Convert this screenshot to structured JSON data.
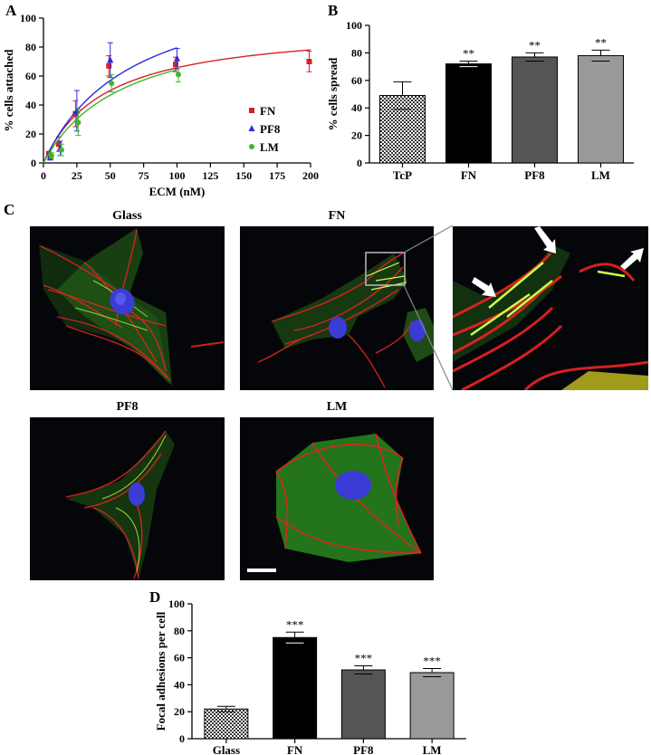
{
  "panels": {
    "A": "A",
    "B": "B",
    "C": "C",
    "D": "D"
  },
  "micrographs": {
    "glass": "Glass",
    "fn": "FN",
    "pf8": "PF8",
    "lm": "LM"
  },
  "colors": {
    "fn": "#d62028",
    "pf8": "#2a2ad8",
    "lm": "#3fb62a",
    "actin": "#e32222",
    "vinculin": "#3fd23a",
    "nucleus": "#3b3bd6"
  },
  "chart_data": [
    {
      "id": "A",
      "type": "scatter",
      "title": "",
      "xlabel": "ECM (nM)",
      "ylabel": "% cells attached",
      "xlim": [
        0,
        200
      ],
      "ylim": [
        0,
        100
      ],
      "xticks": [
        "0",
        "25",
        "50",
        "75",
        "100",
        "125",
        "150",
        "175",
        "200"
      ],
      "yticks": [
        "0",
        "20",
        "40",
        "60",
        "80",
        "100"
      ],
      "legend_position": "bottom-right",
      "series": [
        {
          "name": "FN",
          "color": "#d62028",
          "marker": "square",
          "x": [
            5,
            12.5,
            25,
            50,
            100,
            200
          ],
          "y": [
            6,
            13,
            34,
            67,
            68,
            70
          ],
          "err": [
            2,
            5,
            9,
            7,
            5,
            7
          ],
          "fit": {
            "bmax": 96,
            "kd": 46,
            "xmax": 200
          }
        },
        {
          "name": "PF8",
          "color": "#2a2ad8",
          "marker": "triangle",
          "x": [
            5,
            12.5,
            25,
            50,
            100
          ],
          "y": [
            4,
            10,
            36,
            71,
            72
          ],
          "err": [
            2,
            5,
            14,
            12,
            7
          ],
          "fit": {
            "bmax": 132,
            "kd": 66,
            "xmax": 100
          }
        },
        {
          "name": "LM",
          "color": "#3fb62a",
          "marker": "circle",
          "x": [
            5,
            12.5,
            25,
            50,
            100
          ],
          "y": [
            5,
            9,
            28,
            55,
            61
          ],
          "err": [
            2,
            4,
            9,
            6,
            5
          ],
          "fit": {
            "bmax": 103,
            "kd": 60,
            "xmax": 100
          }
        }
      ]
    },
    {
      "id": "B",
      "type": "bar",
      "title": "",
      "xlabel": "",
      "ylabel": "% cells spread",
      "ylim": [
        0,
        100
      ],
      "yticks": [
        "0",
        "20",
        "40",
        "60",
        "80",
        "100"
      ],
      "categories": [
        "TcP",
        "FN",
        "PF8",
        "LM"
      ],
      "values": [
        49,
        72,
        77,
        78
      ],
      "errors": [
        10,
        2,
        3,
        4
      ],
      "significance": [
        "",
        "**",
        "**",
        "**"
      ],
      "fills": [
        "checker",
        "#000000",
        "#555555",
        "#999999"
      ]
    },
    {
      "id": "D",
      "type": "bar",
      "title": "",
      "xlabel": "",
      "ylabel": "Focal adhesions per cell",
      "ylim": [
        0,
        100
      ],
      "yticks": [
        "0",
        "20",
        "40",
        "60",
        "80",
        "100"
      ],
      "categories": [
        "Glass",
        "FN",
        "PF8",
        "LM"
      ],
      "values": [
        22,
        75,
        51,
        49
      ],
      "errors": [
        2,
        4,
        3,
        3
      ],
      "significance": [
        "",
        "***",
        "***",
        "***"
      ],
      "fills": [
        "checker",
        "#000000",
        "#555555",
        "#999999"
      ]
    }
  ]
}
